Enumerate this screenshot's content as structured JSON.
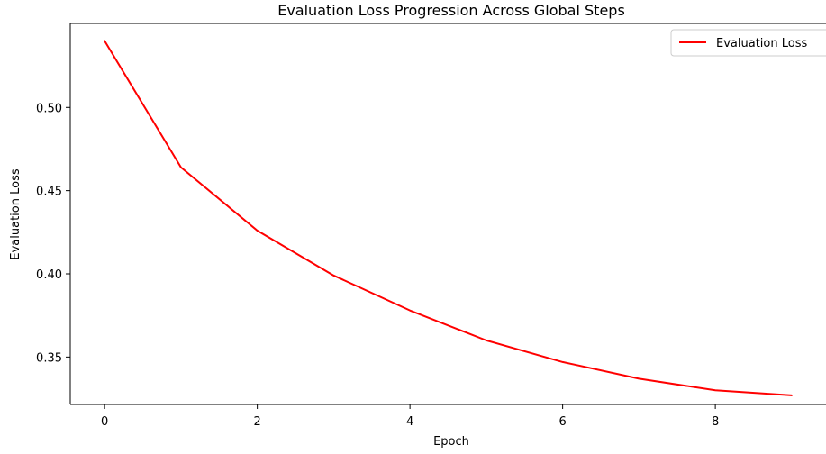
{
  "chart_data": {
    "type": "line",
    "title": "Evaluation Loss Progression Across Global Steps",
    "xlabel": "Epoch",
    "ylabel": "Evaluation Loss",
    "xlim": [
      -0.45,
      9.45
    ],
    "ylim": [
      0.3215,
      0.5505
    ],
    "xticks": [
      0,
      2,
      4,
      6,
      8
    ],
    "yticks": [
      0.35,
      0.4,
      0.45,
      0.5
    ],
    "ytick_labels": [
      "0.35",
      "0.40",
      "0.45",
      "0.50"
    ],
    "grid": false,
    "legend_position": "top-right",
    "series": [
      {
        "name": "Evaluation Loss",
        "color": "#ff0000",
        "x": [
          0,
          1,
          2,
          3,
          4,
          5,
          6,
          7,
          8,
          9
        ],
        "y": [
          0.54,
          0.464,
          0.426,
          0.399,
          0.378,
          0.36,
          0.347,
          0.337,
          0.33,
          0.327
        ]
      }
    ]
  }
}
